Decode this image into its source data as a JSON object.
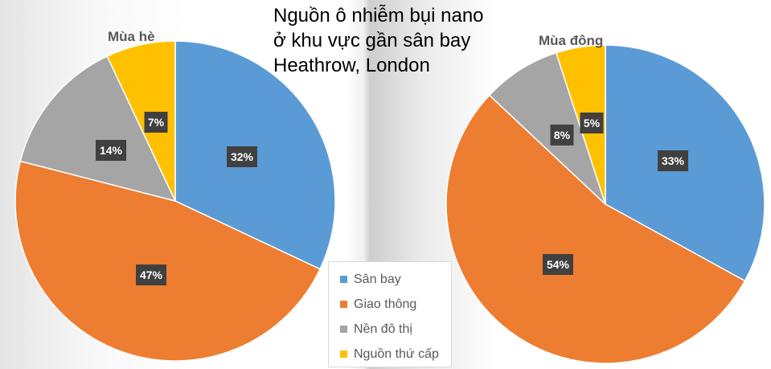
{
  "title_lines": [
    "Nguồn ô nhiễm bụi nano",
    "ở khu vực gần sân bay",
    "Heathrow, London"
  ],
  "colors": {
    "san_bay": "#5b9bd5",
    "giao_thong": "#ed7d31",
    "nen_do_thi": "#a5a5a5",
    "nguon_thu_cap": "#ffc000",
    "label_bg": "#404040",
    "label_text": "#ffffff"
  },
  "legend": [
    {
      "label": "Sân bay",
      "color": "#5b9bd5"
    },
    {
      "label": "Giao thông",
      "color": "#ed7d31"
    },
    {
      "label": "Nền đô thị",
      "color": "#a5a5a5"
    },
    {
      "label": "Nguồn thứ cấp",
      "color": "#ffc000"
    }
  ],
  "chart_data": [
    {
      "type": "pie",
      "title": "Mùa hè",
      "categories": [
        "Sân bay",
        "Giao thông",
        "Nền đô thị",
        "Nguồn thứ cấp"
      ],
      "values": [
        32,
        47,
        14,
        7
      ],
      "labels": [
        "32%",
        "47%",
        "14%",
        "7%"
      ],
      "legend": "shared, bottom-center"
    },
    {
      "type": "pie",
      "title": "Mùa đông",
      "categories": [
        "Sân bay",
        "Giao thông",
        "Nền đô thị",
        "Nguồn thứ cấp"
      ],
      "values": [
        33,
        54,
        8,
        5
      ],
      "labels": [
        "33%",
        "54%",
        "8%",
        "5%"
      ],
      "legend": "shared, bottom-center"
    }
  ]
}
